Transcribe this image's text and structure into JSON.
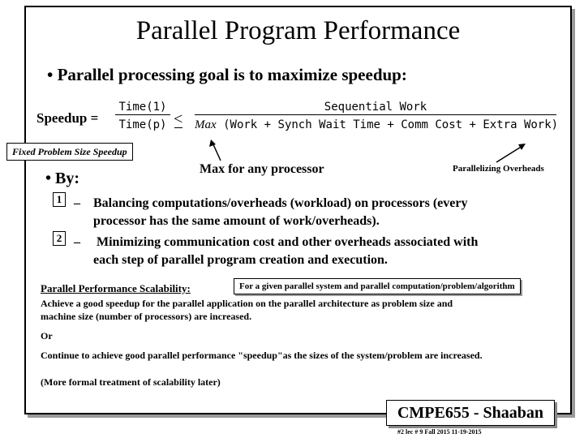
{
  "title": "Parallel Program Performance",
  "bullet_main": "• Parallel processing goal is to maximize speedup:",
  "formula": {
    "label": "Speedup =",
    "numerator_1": "Time(1)",
    "denominator_1": "Time(p)",
    "lt_symbol": "<",
    "numerator_2": "Sequential Work",
    "denominator_2_prefix": "Max",
    "denominator_2_rest": " (Work + Synch Wait Time + Comm Cost + Extra Work)"
  },
  "fixed_label": "Fixed Problem Size Speedup",
  "max_proc_label": "Max for any processor",
  "parallel_overheads_label": "Parallelizing Overheads",
  "by_label": "• By:",
  "items": [
    {
      "num": "1",
      "dash": "–",
      "line1": "Balancing computations/overheads (workload) on processors (every",
      "line2": "processor has the same amount of work/overheads)."
    },
    {
      "num": "2",
      "dash": "–",
      "line1": "Minimizing communication cost and other overheads associated with",
      "line2": "each step of parallel program creation and execution."
    }
  ],
  "scalability": {
    "label": "Parallel Performance Scalability:",
    "given_box": "For a given parallel system and parallel computation/problem/algorithm",
    "line1": "Achieve a good speedup for the parallel application on the parallel architecture as problem size and",
    "line2": "machine size (number of processors) are increased.",
    "or": "Or",
    "line3": "Continue to achieve good parallel performance \"speedup\"as the sizes of the system/problem are increased.",
    "line4": "(More formal treatment of scalability later)"
  },
  "footer": {
    "course": "CMPE655 - Shaaban",
    "meta": "#2 lec # 9 Fall 2015 11-19-2015"
  }
}
